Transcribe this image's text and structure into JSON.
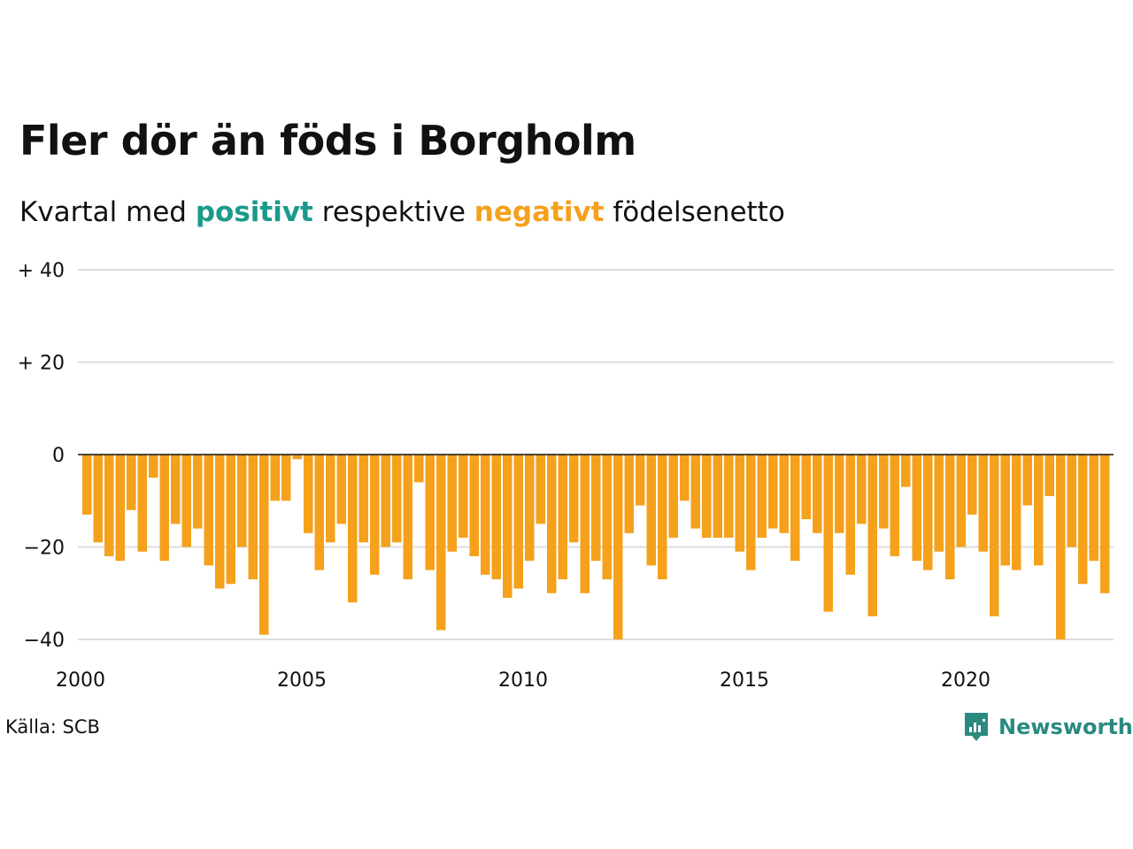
{
  "title": "Fler dör än föds i Borgholm",
  "subtitle": {
    "prefix": "Kvartal med",
    "positive": "positivt",
    "middle": "respektive",
    "negative": "negativt",
    "suffix": "födelsenetto"
  },
  "source": "Källa: SCB",
  "brand": {
    "name": "Newsworthy",
    "icon": "newsworthy-logo-icon",
    "color": "#2a8a80"
  },
  "colors": {
    "positive": "#1b9a8a",
    "negative": "#f5a11c",
    "grid": "#dddddd",
    "zero": "#111111"
  },
  "chart_data": {
    "type": "bar",
    "title": "Fler dör än föds i Borgholm",
    "xlabel": "",
    "ylabel": "",
    "start": "2000-Q1",
    "frequency": "quarter",
    "ylim": [
      -42,
      42
    ],
    "yticks": [
      40,
      20,
      0,
      -20,
      -40
    ],
    "ytick_labels": [
      "+ 40",
      "+ 20",
      "0",
      "−20",
      "−40"
    ],
    "xticks": [
      "2000",
      "2005",
      "2010",
      "2015",
      "2020"
    ],
    "grid": true,
    "values": [
      -13,
      -19,
      -22,
      -23,
      -12,
      -21,
      -5,
      -23,
      -15,
      -20,
      -16,
      -24,
      -29,
      -28,
      -20,
      -27,
      -39,
      -10,
      -10,
      -1,
      -17,
      -25,
      -19,
      -15,
      -32,
      -19,
      -26,
      -20,
      -19,
      -27,
      -6,
      -25,
      -38,
      -21,
      -18,
      -22,
      -26,
      -27,
      -31,
      -29,
      -23,
      -15,
      -30,
      -27,
      -19,
      -30,
      -23,
      -27,
      -40,
      -17,
      -11,
      -24,
      -27,
      -18,
      -10,
      -16,
      -18,
      -18,
      -18,
      -21,
      -25,
      -18,
      -16,
      -17,
      -23,
      -14,
      -17,
      -34,
      -17,
      -26,
      -15,
      -35,
      -16,
      -22,
      -7,
      -23,
      -25,
      -21,
      -27,
      -20,
      -13,
      -21,
      -35,
      -24,
      -25,
      -11,
      -24,
      -9,
      -40,
      -20,
      -28,
      -23,
      -30
    ]
  }
}
